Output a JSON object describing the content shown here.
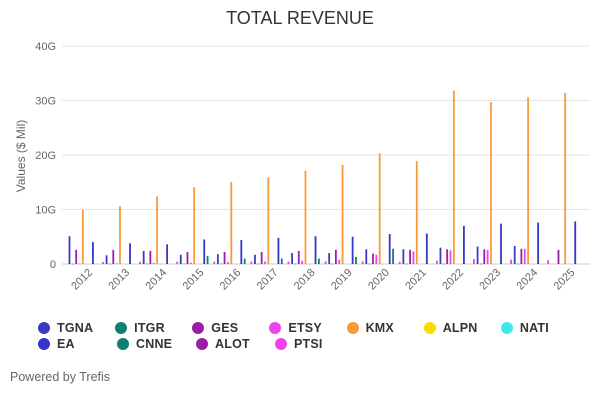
{
  "chart_data": {
    "type": "bar",
    "title": "TOTAL REVENUE",
    "ylabel": "Values ($ Mil)",
    "xlabel": "",
    "ylim": [
      0,
      40000
    ],
    "yticks": [
      0,
      10000,
      20000,
      30000,
      40000
    ],
    "ytick_labels": [
      "0",
      "10G",
      "20G",
      "30G",
      "40G"
    ],
    "grid": true,
    "legend_position": "bottom",
    "categories": [
      "2012",
      "2013",
      "2014",
      "2015",
      "2016",
      "2017",
      "2018",
      "2019",
      "2020",
      "2021",
      "2022",
      "2023",
      "2024",
      "2025"
    ],
    "series": [
      {
        "name": "TGNA",
        "color": "#3b3bc4",
        "values": [
          5100,
          1600,
          2400,
          1700,
          1800,
          1700,
          2000,
          2000,
          2700,
          2700,
          3000,
          3200,
          3300,
          0
        ]
      },
      {
        "name": "ITGR",
        "color": "#0e7e73",
        "values": [
          50,
          50,
          60,
          60,
          60,
          60,
          60,
          60,
          60,
          60,
          60,
          60,
          60,
          0
        ]
      },
      {
        "name": "GES",
        "color": "#9a1ea8",
        "values": [
          2600,
          2600,
          2400,
          2200,
          2200,
          2200,
          2400,
          2600,
          1900,
          2600,
          2700,
          2700,
          2800,
          2600
        ]
      },
      {
        "name": "ETSY",
        "color": "#ee44ee",
        "values": [
          80,
          120,
          200,
          250,
          350,
          450,
          600,
          800,
          1700,
          2300,
          2500,
          2600,
          2800,
          0
        ]
      },
      {
        "name": "KMX",
        "color": "#f9993a",
        "values": [
          9900,
          10600,
          12400,
          14100,
          15100,
          15900,
          17100,
          18200,
          20300,
          18900,
          31800,
          29700,
          30600,
          31400
        ]
      },
      {
        "name": "ALPN",
        "color": "#fadd00",
        "values": [
          0,
          0,
          0,
          0,
          0,
          0,
          0,
          0,
          0,
          0,
          0,
          0,
          0,
          0
        ]
      },
      {
        "name": "NATI",
        "color": "#3ee8e8",
        "values": [
          0,
          0,
          0,
          0,
          0,
          0,
          0,
          0,
          0,
          0,
          0,
          0,
          0,
          0
        ]
      },
      {
        "name": "EA",
        "color": "#3535c8",
        "values": [
          4000,
          3800,
          3600,
          4500,
          4400,
          4800,
          5100,
          5000,
          5500,
          5600,
          7000,
          7400,
          7600,
          7800
        ]
      },
      {
        "name": "CNNE",
        "color": "#0e7e73",
        "values": [
          0,
          0,
          0,
          1500,
          1000,
          1000,
          1000,
          1300,
          2800,
          0,
          0,
          0,
          0,
          0
        ]
      },
      {
        "name": "ALOT",
        "color": "#9a1ea8",
        "values": [
          0,
          0,
          0,
          0,
          0,
          0,
          0,
          0,
          0,
          0,
          0,
          0,
          0,
          0
        ]
      },
      {
        "name": "PTSI",
        "color": "#ee44ee",
        "values": [
          380,
          400,
          420,
          450,
          450,
          450,
          500,
          500,
          400,
          600,
          900,
          800,
          700,
          0
        ]
      }
    ]
  },
  "legend": {
    "rows": [
      [
        "TGNA",
        "ITGR",
        "GES",
        "ETSY",
        "KMX",
        "ALPN",
        "NATI"
      ],
      [
        "EA",
        "CNNE",
        "ALOT",
        "PTSI"
      ]
    ]
  },
  "footer": {
    "text": "Powered by Trefis"
  }
}
